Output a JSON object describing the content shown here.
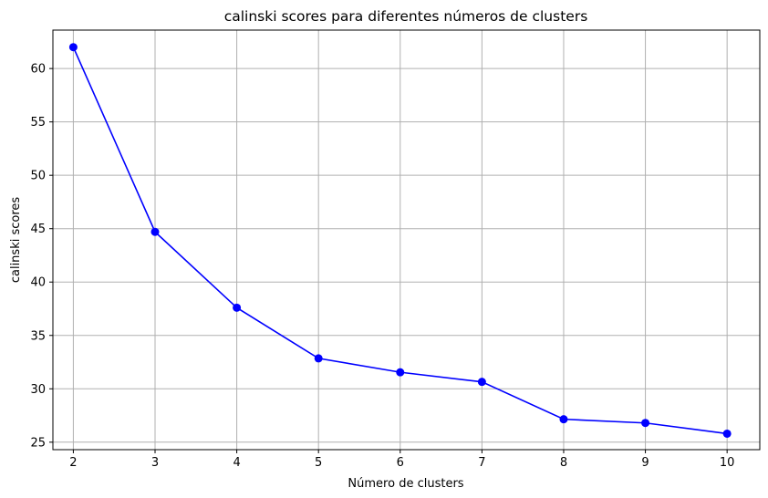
{
  "chart_data": {
    "type": "line",
    "title": "calinski scores para diferentes números de clusters",
    "xlabel": "Número de clusters",
    "ylabel": "calinski scores",
    "xlim": [
      1.75,
      10.4
    ],
    "ylim": [
      24.3,
      63.6
    ],
    "xticks": [
      2,
      3,
      4,
      5,
      6,
      7,
      8,
      9,
      10
    ],
    "yticks": [
      25,
      30,
      35,
      40,
      45,
      50,
      55,
      60
    ],
    "grid": true,
    "legend": "none",
    "series": [
      {
        "color": "#0000ff",
        "marker": "circle",
        "x": [
          2,
          3,
          4,
          5,
          6,
          7,
          8,
          9,
          10
        ],
        "y": [
          62.0,
          44.7,
          37.6,
          32.85,
          31.55,
          30.65,
          27.15,
          26.8,
          25.8
        ]
      }
    ]
  }
}
